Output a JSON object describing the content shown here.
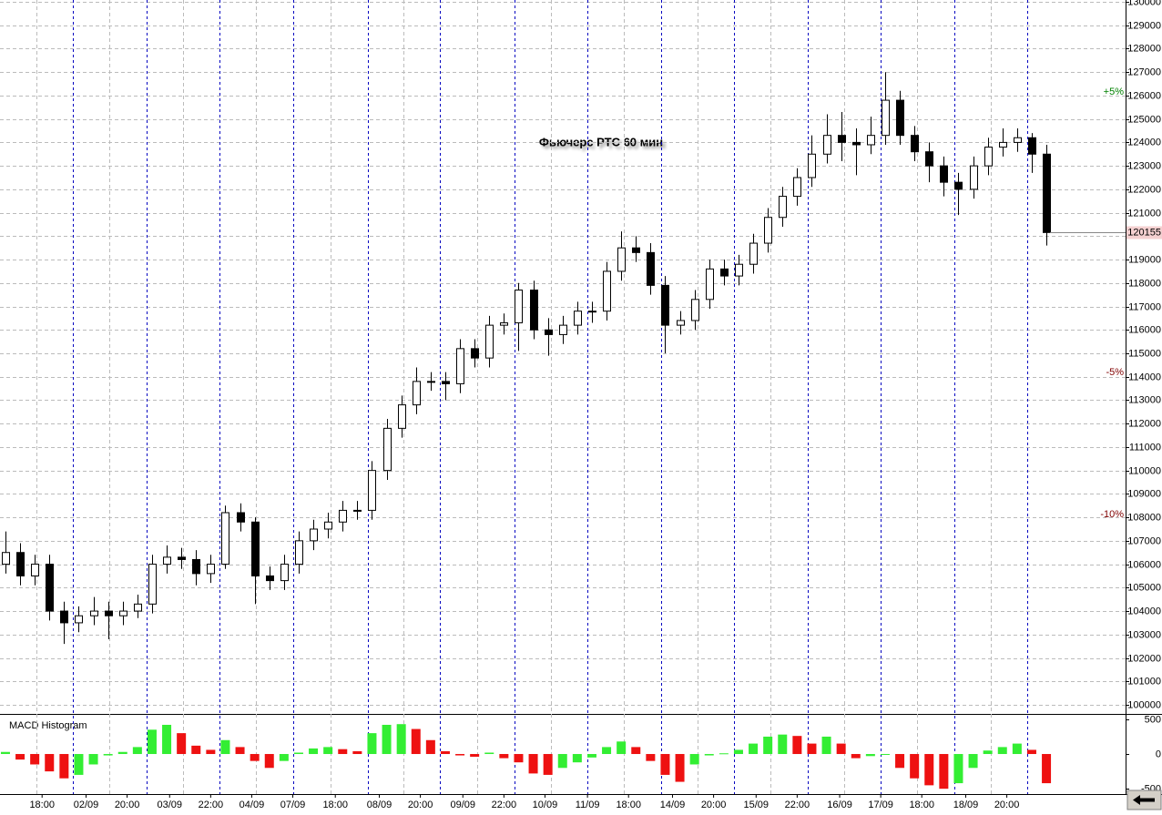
{
  "chart_data": [
    {
      "type": "candlestick",
      "title": "Фьючерс РТС 60 мин",
      "open": [
        106000,
        106500,
        105500,
        106000,
        104000,
        103500,
        103800,
        104000,
        103800,
        104000,
        104300,
        106000,
        106300,
        106200,
        105600,
        106000,
        108200,
        107800,
        105500,
        105300,
        106000,
        107000,
        107500,
        107800,
        108300,
        108300,
        110000,
        111800,
        112800,
        113800,
        113800,
        113700,
        115200,
        114800,
        116200,
        116300,
        117700,
        116000,
        115800,
        116200,
        116800,
        116800,
        118500,
        119500,
        119300,
        117900,
        116200,
        116400,
        117300,
        118600,
        118300,
        118800,
        119700,
        120800,
        121700,
        122500,
        123500,
        124300,
        124000,
        123900,
        124300,
        125800,
        124300,
        123600,
        123000,
        122300,
        122000,
        123000,
        123800,
        124000,
        124200,
        123500
      ],
      "high": [
        107400,
        106900,
        106400,
        106400,
        104400,
        104200,
        104600,
        104400,
        104400,
        104700,
        106400,
        106800,
        106700,
        106600,
        106400,
        108500,
        108600,
        108000,
        105900,
        106400,
        107400,
        107900,
        108200,
        108700,
        108700,
        110400,
        112200,
        113200,
        114400,
        114200,
        114200,
        115600,
        115600,
        116600,
        116700,
        118000,
        118100,
        116500,
        116600,
        117200,
        117200,
        118900,
        120200,
        120000,
        119700,
        118300,
        116800,
        117700,
        119000,
        119000,
        119200,
        120100,
        121200,
        122100,
        122900,
        124300,
        125200,
        125300,
        124600,
        125100,
        127000,
        126200,
        124700,
        124000,
        123400,
        122700,
        123400,
        124200,
        124600,
        124600,
        124400,
        123900
      ],
      "low": [
        105600,
        105100,
        105100,
        103600,
        102600,
        103100,
        103400,
        102800,
        103400,
        103700,
        103900,
        105600,
        105800,
        105100,
        105200,
        105800,
        107400,
        104300,
        104900,
        104900,
        105600,
        106600,
        107100,
        107400,
        107900,
        107900,
        109600,
        111400,
        112400,
        113400,
        113000,
        113300,
        114400,
        114400,
        115800,
        115100,
        115600,
        114900,
        115400,
        115800,
        116300,
        116400,
        118100,
        118900,
        117500,
        115000,
        115800,
        116000,
        116900,
        117900,
        117900,
        118400,
        119300,
        120400,
        121300,
        122100,
        123100,
        123200,
        122600,
        123500,
        123900,
        123900,
        123200,
        122300,
        121700,
        120900,
        121600,
        122600,
        123400,
        123600,
        122700,
        119600
      ],
      "close": [
        106500,
        105500,
        106000,
        104000,
        103500,
        103800,
        104000,
        103800,
        104000,
        104300,
        106000,
        106300,
        106200,
        105600,
        106000,
        108200,
        107800,
        105500,
        105300,
        106000,
        107000,
        107500,
        107800,
        108300,
        108300,
        110000,
        111800,
        112800,
        113800,
        113800,
        113700,
        115200,
        114800,
        116200,
        116300,
        117700,
        116000,
        115800,
        116200,
        116800,
        116800,
        118500,
        119500,
        119300,
        117900,
        116200,
        116400,
        117300,
        118600,
        118300,
        118800,
        119700,
        120800,
        121700,
        122500,
        123500,
        124300,
        124000,
        123900,
        124300,
        125800,
        124300,
        123600,
        123000,
        122300,
        122000,
        123000,
        123800,
        124000,
        124200,
        123500,
        120155
      ],
      "last_price": 120155,
      "xlim": [
        -0.37,
        76.4
      ],
      "ylim": [
        100000,
        130000
      ],
      "yticks": [
        100000,
        101000,
        102000,
        103000,
        104000,
        105000,
        106000,
        107000,
        108000,
        109000,
        110000,
        111000,
        112000,
        113000,
        114000,
        115000,
        116000,
        117000,
        118000,
        119000,
        120000,
        121000,
        122000,
        123000,
        124000,
        125000,
        126000,
        127000,
        128000,
        129000,
        130000
      ],
      "xticks": [
        {
          "value": 2.5,
          "label": "18:00"
        },
        {
          "value": 5.5,
          "label": "02/09"
        },
        {
          "value": 8.3,
          "label": "20:00"
        },
        {
          "value": 11.2,
          "label": "03/09"
        },
        {
          "value": 14,
          "label": "22:00"
        },
        {
          "value": 16.8,
          "label": "04/09"
        },
        {
          "value": 19.6,
          "label": "07/09"
        },
        {
          "value": 22.5,
          "label": "18:00"
        },
        {
          "value": 25.5,
          "label": "08/09"
        },
        {
          "value": 28.3,
          "label": "20:00"
        },
        {
          "value": 31.2,
          "label": "09/09"
        },
        {
          "value": 34,
          "label": "22:00"
        },
        {
          "value": 36.8,
          "label": "10/09"
        },
        {
          "value": 39.7,
          "label": "11/09"
        },
        {
          "value": 42.5,
          "label": "18:00"
        },
        {
          "value": 45.5,
          "label": "14/09"
        },
        {
          "value": 48.3,
          "label": "20:00"
        },
        {
          "value": 51.2,
          "label": "15/09"
        },
        {
          "value": 54,
          "label": "22:00"
        },
        {
          "value": 56.9,
          "label": "16/09"
        },
        {
          "value": 59.7,
          "label": "17/09"
        },
        {
          "value": 62.5,
          "label": "18:00"
        },
        {
          "value": 65.5,
          "label": "18/09"
        },
        {
          "value": 68.3,
          "label": "20:00"
        }
      ],
      "session_breaks": [
        4.6,
        9.6,
        14.6,
        19.6,
        24.7,
        29.6,
        34.7,
        39.7,
        44.7,
        49.7,
        54.7,
        59.7,
        64.7,
        69.7
      ],
      "levels": [
        {
          "value": 126150,
          "label": "+5%",
          "color": "#008000"
        },
        {
          "value": 114190,
          "label": "-5%",
          "color": "#800000"
        },
        {
          "value": 108120,
          "label": "-10%",
          "color": "#800000"
        }
      ],
      "grid": true
    },
    {
      "type": "bar",
      "title": "MACD Histogram",
      "values": [
        30,
        -80,
        -150,
        -250,
        -350,
        -300,
        -150,
        -20,
        30,
        100,
        350,
        420,
        300,
        120,
        60,
        200,
        100,
        -100,
        -200,
        -100,
        20,
        80,
        100,
        70,
        40,
        300,
        420,
        430,
        360,
        200,
        40,
        -20,
        -40,
        20,
        -60,
        -120,
        -280,
        -300,
        -200,
        -120,
        -50,
        100,
        180,
        100,
        -100,
        -300,
        -400,
        -150,
        -20,
        10,
        60,
        150,
        250,
        280,
        260,
        150,
        250,
        150,
        -60,
        -30,
        -10,
        -200,
        -350,
        -450,
        -500,
        -420,
        -200,
        50,
        100,
        150,
        60,
        -420
      ],
      "rising_color": "#33ee33",
      "falling_color": "#ee1111",
      "ylim": [
        -550,
        590
      ],
      "yticks": [
        500,
        0,
        -500
      ]
    }
  ]
}
